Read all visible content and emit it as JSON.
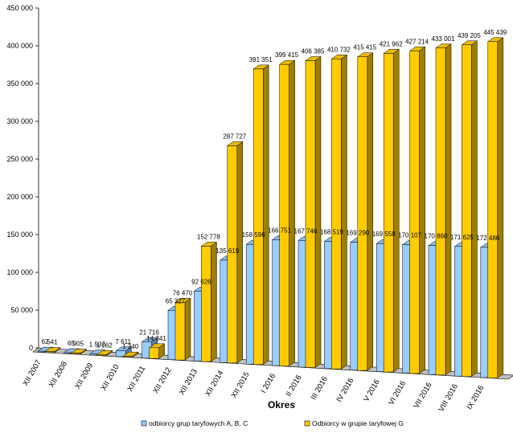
{
  "chart_data": {
    "type": "bar",
    "xlabel": "Okres",
    "ylabel": "",
    "ylim": [
      0,
      450000
    ],
    "yticks": [
      0,
      50000,
      100000,
      150000,
      200000,
      250000,
      300000,
      350000,
      400000,
      450000
    ],
    "ytick_labels": [
      "0",
      "50 000",
      "100 000",
      "150 000",
      "200 000",
      "250 000",
      "300 000",
      "350 000",
      "400 000",
      "450 000"
    ],
    "grid": false,
    "legend_position": "bottom",
    "categories": [
      "XII 2007",
      "XII 2008",
      "XII 2009",
      "XII 2010",
      "XII 2011",
      "XII 2012",
      "XII 2013",
      "XII 2014",
      "XII 2015",
      "I 2016",
      "II 2016",
      "III 2016",
      "IV 2016",
      "V 2016",
      "VI 2016",
      "VII 2016",
      "VIII 2016",
      "IX 2016"
    ],
    "series": [
      {
        "name": "odbiorcy grup taryfowych A, B, C",
        "color": "#99ccff",
        "values": [
          62,
          65,
          1537,
          7611,
          21716,
          65327,
          92626,
          135619,
          158596,
          166751,
          167746,
          168519,
          169290,
          169558,
          170107,
          170860,
          171625,
          172486
        ],
        "labels": [
          "62",
          "65",
          "1 537",
          "7 611",
          "21 716",
          "65 327",
          "92 626",
          "135 619",
          "158 596",
          "166 751",
          "167 746",
          "168 519",
          "169 290",
          "169 558",
          "170 107",
          "170 860",
          "171 625",
          "172 486"
        ]
      },
      {
        "name": "Odbiorcy w grupie taryfowej G",
        "color": "#ffcc00",
        "values": [
          541,
          905,
          1062,
          1340,
          14341,
          76470,
          152778,
          287727,
          391351,
          399415,
          406385,
          410732,
          415415,
          421962,
          427214,
          433001,
          439205,
          445439
        ],
        "labels": [
          "541",
          "905",
          "1 062",
          "1 340",
          "14 341",
          "76 470",
          "152 778",
          "287 727",
          "391 351",
          "399 415",
          "406 385",
          "410 732",
          "415 415",
          "421 962",
          "427 214",
          "433 001",
          "439 205",
          "445 439"
        ]
      }
    ]
  }
}
